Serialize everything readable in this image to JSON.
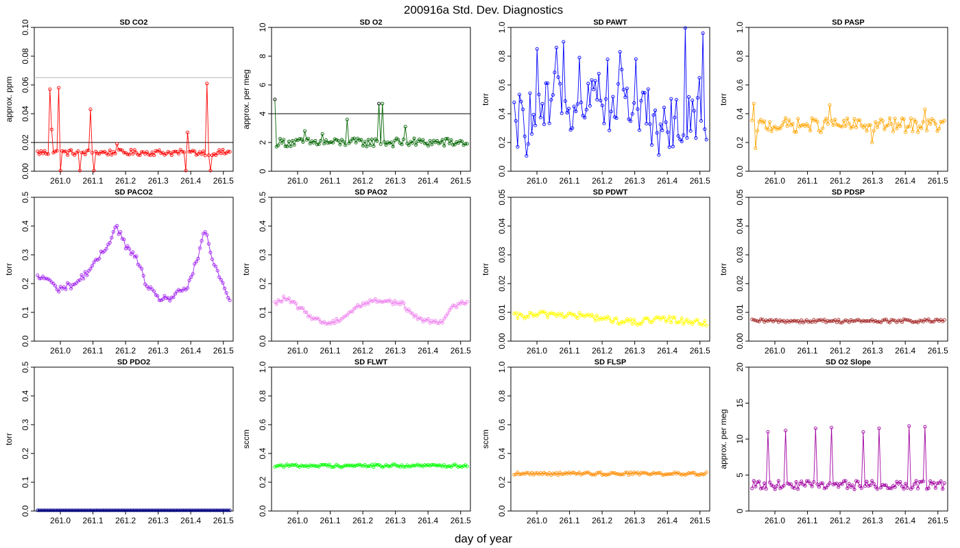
{
  "figure": {
    "title": "200916a   Std. Dev. Diagnostics",
    "xlabel": "day of year"
  },
  "chart_data": [
    {
      "type": "line",
      "title": "SD CO2",
      "xlabel": "",
      "ylabel": "approx. ppm",
      "color": "#ff0000",
      "xlim": [
        260.92,
        261.53
      ],
      "ylim": [
        0,
        0.1
      ],
      "xticks": [
        "261.0",
        "261.1",
        "261.2",
        "261.3",
        "261.4",
        "261.5"
      ],
      "yticks": [
        "0.00",
        "0.02",
        "0.04",
        "0.06",
        "0.08",
        "0.10"
      ],
      "hlines": [
        {
          "y": 0.02,
          "color": "#000000"
        },
        {
          "y": 0.065,
          "color": "#bbbbbb"
        }
      ],
      "pattern": {
        "base": 0.013,
        "noise": 0.002,
        "amp": 0,
        "phase": 0,
        "spikes": [
          [
            0.06,
            0.057
          ],
          [
            0.075,
            0.029
          ],
          [
            0.11,
            0.058
          ],
          [
            0.12,
            0.0
          ],
          [
            0.22,
            0.0
          ],
          [
            0.275,
            0.043
          ],
          [
            0.29,
            0.0
          ],
          [
            0.41,
            0.019
          ],
          [
            0.77,
            0.0
          ],
          [
            0.78,
            0.027
          ],
          [
            0.88,
            0.061
          ],
          [
            0.9,
            0.0
          ]
        ]
      },
      "highlight": []
    },
    {
      "type": "line",
      "title": "SD O2",
      "xlabel": "",
      "ylabel": "approx. per meg",
      "color": "#006400",
      "xlim": [
        260.92,
        261.53
      ],
      "ylim": [
        0,
        10
      ],
      "xticks": [
        "261.0",
        "261.1",
        "261.2",
        "261.3",
        "261.4",
        "261.5"
      ],
      "yticks": [
        "0",
        "2",
        "4",
        "6",
        "8",
        "10"
      ],
      "hlines": [
        {
          "y": 4,
          "color": "#000000"
        }
      ],
      "pattern": {
        "base": 2.0,
        "noise": 0.3,
        "amp": 0,
        "phase": 0,
        "spikes": [
          [
            0.0,
            5.0
          ],
          [
            0.16,
            2.8
          ],
          [
            0.25,
            2.6
          ],
          [
            0.38,
            3.6
          ],
          [
            0.56,
            4.7
          ],
          [
            0.68,
            3.1
          ]
        ]
      },
      "highlight": [
        {
          "x": 260.93,
          "y": 5.0
        },
        {
          "x": 261.25,
          "y": 4.7
        }
      ]
    },
    {
      "type": "line",
      "title": "SD PAWT",
      "xlabel": "",
      "ylabel": "torr",
      "color": "#0000ff",
      "xlim": [
        260.92,
        261.53
      ],
      "ylim": [
        0,
        1.0
      ],
      "xticks": [
        "261.0",
        "261.1",
        "261.2",
        "261.3",
        "261.4",
        "261.5"
      ],
      "yticks": [
        "0.0",
        "0.2",
        "0.4",
        "0.6",
        "0.8",
        "1.0"
      ],
      "hlines": [],
      "pattern": {
        "base": 0.36,
        "noise": 0.14,
        "amp": 0.22,
        "phase": -0.2,
        "spikes": [
          [
            0.12,
            0.85
          ],
          [
            0.22,
            0.86
          ],
          [
            0.26,
            0.9
          ],
          [
            0.34,
            0.79
          ],
          [
            0.55,
            0.83
          ],
          [
            0.63,
            0.78
          ],
          [
            0.89,
            1.05
          ],
          [
            0.92,
            0.28
          ],
          [
            0.96,
            0.65
          ],
          [
            0.98,
            0.96
          ],
          [
            1.0,
            0.22
          ]
        ]
      },
      "highlight": []
    },
    {
      "type": "line",
      "title": "SD PASP",
      "xlabel": "",
      "ylabel": "torr",
      "color": "#ffa500",
      "xlim": [
        260.92,
        261.53
      ],
      "ylim": [
        0,
        1.0
      ],
      "xticks": [
        "261.0",
        "261.1",
        "261.2",
        "261.3",
        "261.4",
        "261.5"
      ],
      "yticks": [
        "0.0",
        "0.2",
        "0.4",
        "0.6",
        "0.8",
        "1.0"
      ],
      "hlines": [],
      "pattern": {
        "base": 0.32,
        "noise": 0.05,
        "amp": 0,
        "phase": 0,
        "spikes": [
          [
            0.01,
            0.47
          ],
          [
            0.02,
            0.16
          ],
          [
            0.4,
            0.46
          ],
          [
            0.62,
            0.2
          ],
          [
            0.9,
            0.43
          ]
        ]
      },
      "highlight": []
    },
    {
      "type": "line",
      "title": "SD PACO2",
      "xlabel": "",
      "ylabel": "torr",
      "color": "#a020f0",
      "xlim": [
        260.92,
        261.53
      ],
      "ylim": [
        0,
        0.5
      ],
      "xticks": [
        "261.0",
        "261.1",
        "261.2",
        "261.3",
        "261.4",
        "261.5"
      ],
      "yticks": [
        "0.0",
        "0.1",
        "0.2",
        "0.3",
        "0.4",
        "0.5"
      ],
      "hlines": [],
      "curve": [
        [
          0.0,
          0.22
        ],
        [
          0.05,
          0.22
        ],
        [
          0.1,
          0.18
        ],
        [
          0.2,
          0.2
        ],
        [
          0.3,
          0.27
        ],
        [
          0.36,
          0.33
        ],
        [
          0.41,
          0.4
        ],
        [
          0.46,
          0.33
        ],
        [
          0.52,
          0.28
        ],
        [
          0.57,
          0.19
        ],
        [
          0.62,
          0.15
        ],
        [
          0.7,
          0.15
        ],
        [
          0.78,
          0.19
        ],
        [
          0.84,
          0.3
        ],
        [
          0.87,
          0.39
        ],
        [
          0.91,
          0.28
        ],
        [
          0.96,
          0.2
        ],
        [
          1.0,
          0.14
        ]
      ],
      "pattern": {
        "noise": 0.012,
        "spikes": []
      },
      "highlight": []
    },
    {
      "type": "line",
      "title": "SD PAO2",
      "xlabel": "",
      "ylabel": "torr",
      "color": "#ee82ee",
      "xlim": [
        260.92,
        261.53
      ],
      "ylim": [
        0,
        0.5
      ],
      "xticks": [
        "261.0",
        "261.1",
        "261.2",
        "261.3",
        "261.4",
        "261.5"
      ],
      "yticks": [
        "0.0",
        "0.1",
        "0.2",
        "0.3",
        "0.4",
        "0.5"
      ],
      "hlines": [],
      "curve": [
        [
          0.0,
          0.13
        ],
        [
          0.05,
          0.15
        ],
        [
          0.1,
          0.13
        ],
        [
          0.2,
          0.08
        ],
        [
          0.28,
          0.06
        ],
        [
          0.35,
          0.08
        ],
        [
          0.43,
          0.12
        ],
        [
          0.5,
          0.14
        ],
        [
          0.58,
          0.14
        ],
        [
          0.66,
          0.13
        ],
        [
          0.74,
          0.08
        ],
        [
          0.8,
          0.07
        ],
        [
          0.87,
          0.07
        ],
        [
          0.93,
          0.12
        ],
        [
          1.0,
          0.14
        ]
      ],
      "pattern": {
        "noise": 0.008,
        "spikes": []
      },
      "highlight": []
    },
    {
      "type": "line",
      "title": "SD PDWT",
      "xlabel": "",
      "ylabel": "torr",
      "color": "#ffff00",
      "xlim": [
        260.92,
        261.53
      ],
      "ylim": [
        0,
        0.05
      ],
      "xticks": [
        "261.0",
        "261.1",
        "261.2",
        "261.3",
        "261.4",
        "261.5"
      ],
      "yticks": [
        "0.00",
        "0.01",
        "0.02",
        "0.03",
        "0.04",
        "0.05"
      ],
      "hlines": [],
      "curve": [
        [
          0.0,
          0.0085
        ],
        [
          0.2,
          0.0095
        ],
        [
          0.4,
          0.0085
        ],
        [
          0.6,
          0.0065
        ],
        [
          0.8,
          0.0075
        ],
        [
          1.0,
          0.0065
        ]
      ],
      "pattern": {
        "noise": 0.0012,
        "spikes": []
      },
      "highlight": []
    },
    {
      "type": "line",
      "title": "SD PDSP",
      "xlabel": "",
      "ylabel": "torr",
      "color": "#a52a2a",
      "xlim": [
        260.92,
        261.53
      ],
      "ylim": [
        0,
        0.05
      ],
      "xticks": [
        "261.0",
        "261.1",
        "261.2",
        "261.3",
        "261.4",
        "261.5"
      ],
      "yticks": [
        "0.00",
        "0.01",
        "0.02",
        "0.03",
        "0.04",
        "0.05"
      ],
      "hlines": [],
      "pattern": {
        "base": 0.007,
        "noise": 0.0006,
        "amp": 0,
        "phase": 0,
        "spikes": []
      },
      "highlight": []
    },
    {
      "type": "line",
      "title": "SD PDO2",
      "xlabel": "",
      "ylabel": "torr",
      "color": "#00008b",
      "xlim": [
        260.92,
        261.53
      ],
      "ylim": [
        0,
        0.5
      ],
      "xticks": [
        "261.0",
        "261.1",
        "261.2",
        "261.3",
        "261.4",
        "261.5"
      ],
      "yticks": [
        "0.0",
        "0.1",
        "0.2",
        "0.3",
        "0.4",
        "0.5"
      ],
      "hlines": [],
      "pattern": {
        "base": 0.0,
        "noise": 0.0,
        "amp": 0,
        "phase": 0,
        "spikes": []
      },
      "highlight": []
    },
    {
      "type": "line",
      "title": "SD FLWT",
      "xlabel": "",
      "ylabel": "sccm",
      "color": "#00ff00",
      "xlim": [
        260.92,
        261.53
      ],
      "ylim": [
        0,
        1.0
      ],
      "xticks": [
        "261.0",
        "261.1",
        "261.2",
        "261.3",
        "261.4",
        "261.5"
      ],
      "yticks": [
        "0.0",
        "0.2",
        "0.4",
        "0.6",
        "0.8",
        "1.0"
      ],
      "hlines": [],
      "pattern": {
        "base": 0.315,
        "noise": 0.01,
        "amp": 0,
        "phase": 0,
        "spikes": []
      },
      "highlight": []
    },
    {
      "type": "line",
      "title": "SD FLSP",
      "xlabel": "",
      "ylabel": "sccm",
      "color": "#ff8c00",
      "xlim": [
        260.92,
        261.53
      ],
      "ylim": [
        0,
        1.0
      ],
      "xticks": [
        "261.0",
        "261.1",
        "261.2",
        "261.3",
        "261.4",
        "261.5"
      ],
      "yticks": [
        "0.0",
        "0.2",
        "0.4",
        "0.6",
        "0.8",
        "1.0"
      ],
      "hlines": [],
      "pattern": {
        "base": 0.26,
        "noise": 0.01,
        "amp": 0,
        "phase": 0,
        "spikes": []
      },
      "highlight": []
    },
    {
      "type": "line",
      "title": "SD O2 Slope",
      "xlabel": "",
      "ylabel": "approx. per meg",
      "color": "#a000a0",
      "xlim": [
        260.92,
        261.53
      ],
      "ylim": [
        0,
        20
      ],
      "xticks": [
        "261.0",
        "261.1",
        "261.2",
        "261.3",
        "261.4",
        "261.5"
      ],
      "yticks": [
        "0",
        "5",
        "10",
        "15",
        "20"
      ],
      "hlines": [],
      "pattern": {
        "base": 3.6,
        "noise": 0.6,
        "amp": 0,
        "phase": 0,
        "spikes": [
          [
            0.08,
            11.0
          ],
          [
            0.17,
            11.2
          ],
          [
            0.33,
            11.5
          ],
          [
            0.41,
            11.6
          ],
          [
            0.58,
            11.0
          ],
          [
            0.66,
            11.5
          ],
          [
            0.82,
            11.8
          ],
          [
            0.9,
            11.7
          ]
        ]
      },
      "highlight": []
    }
  ]
}
